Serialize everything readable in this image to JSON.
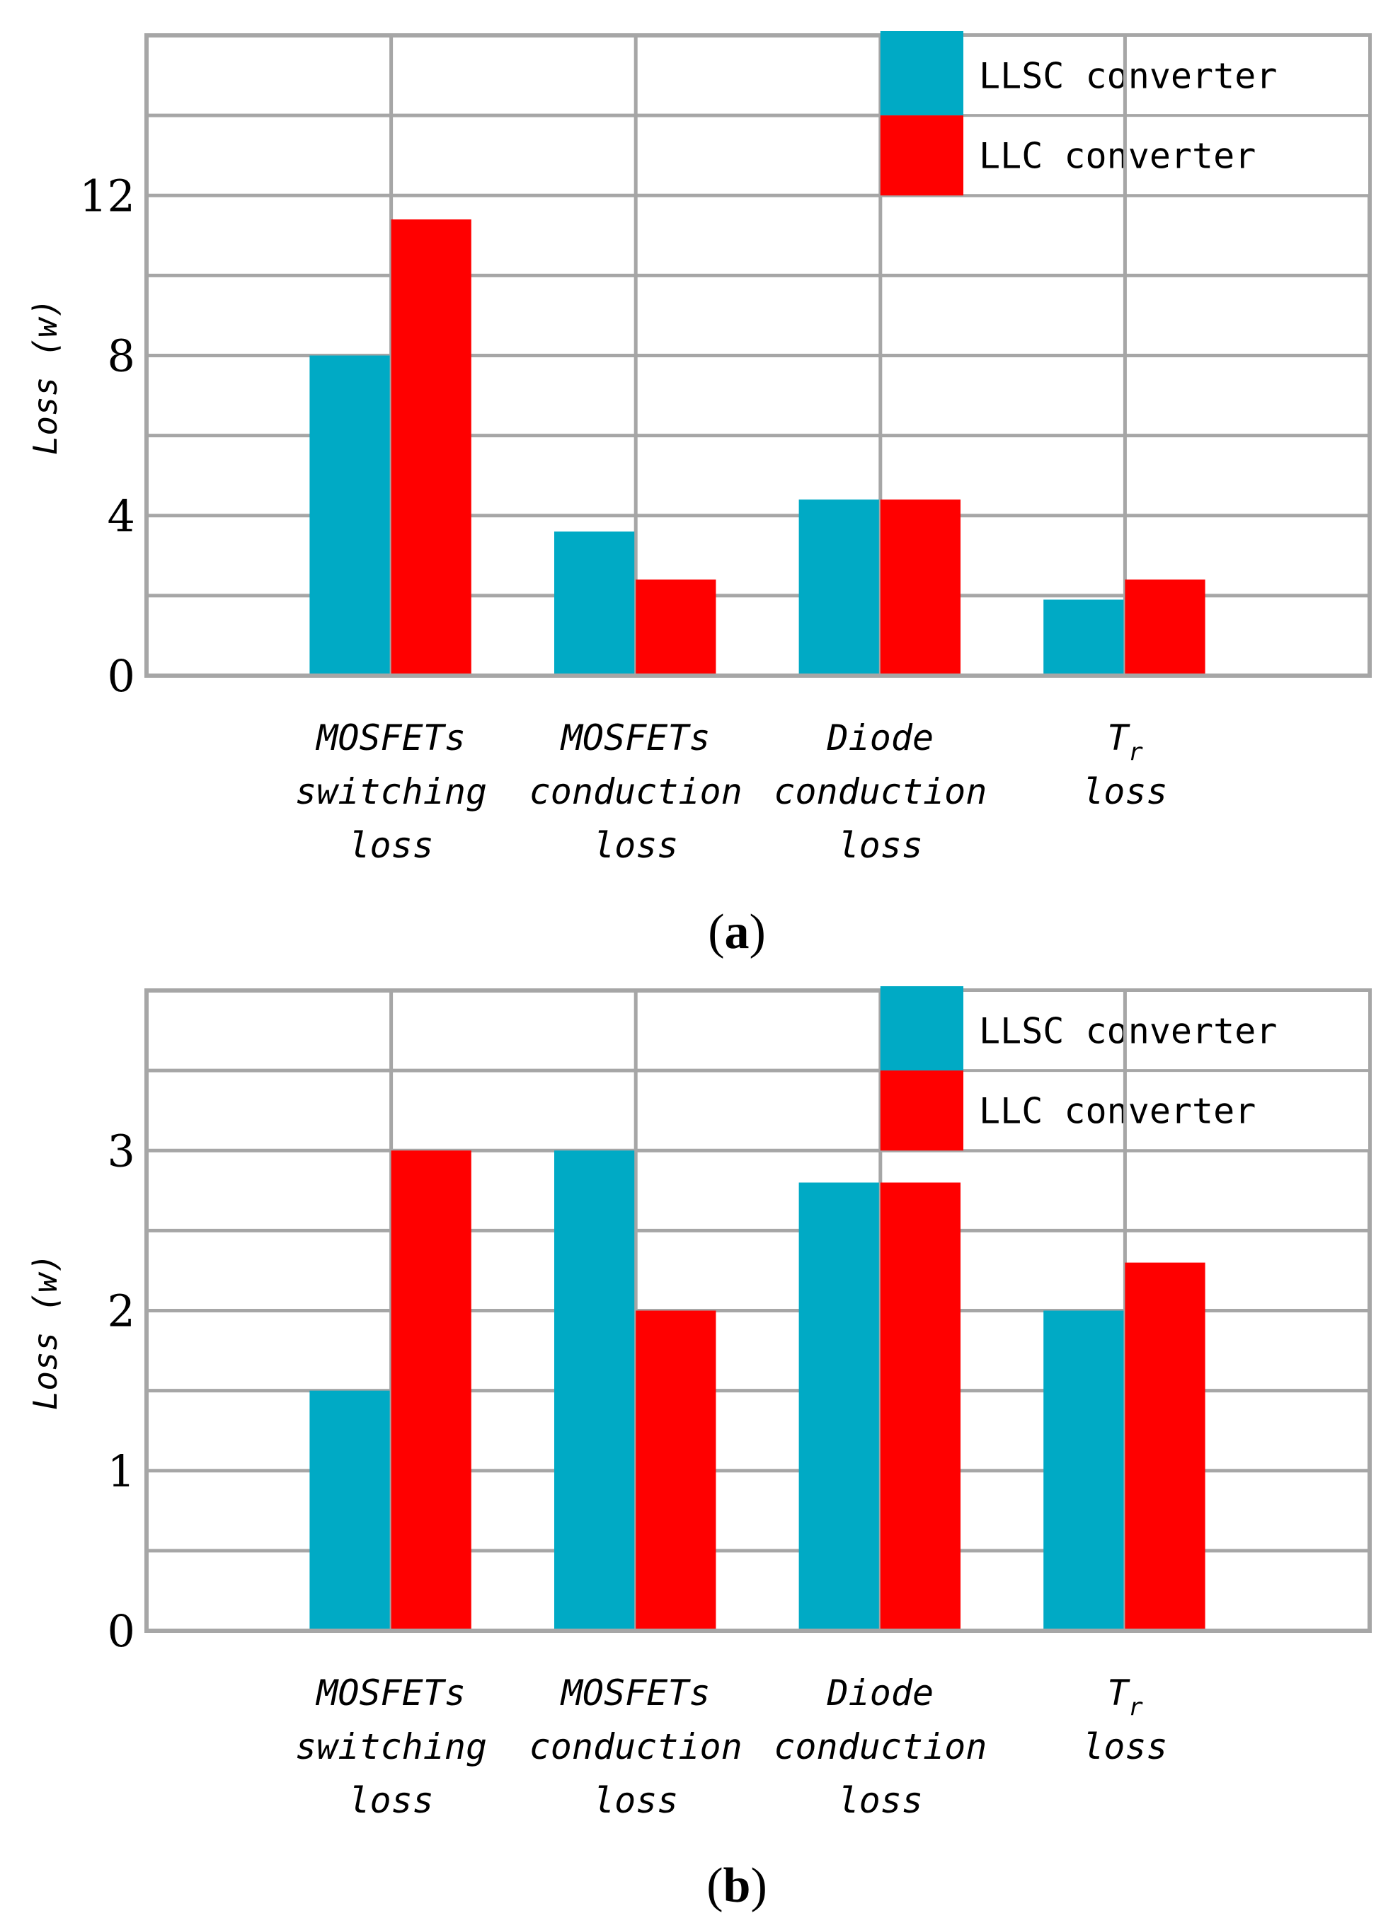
{
  "chart_data": [
    {
      "type": "bar",
      "panel_label": "a",
      "ylabel": "Loss (w)",
      "categories": [
        [
          "MOSFETs",
          "switching",
          "loss"
        ],
        [
          "MOSFETs",
          "conduction",
          "loss"
        ],
        [
          "Diode",
          "conduction",
          "loss"
        ],
        [
          "Tr",
          "loss"
        ]
      ],
      "series": [
        {
          "name": "LLSC converter",
          "color": "#00aac5",
          "values": [
            8.0,
            3.6,
            4.4,
            1.9
          ]
        },
        {
          "name": "LLC converter",
          "color": "#ff0000",
          "values": [
            11.4,
            2.4,
            4.4,
            2.4
          ]
        }
      ],
      "ylim": [
        0,
        16
      ],
      "yticks": [
        0,
        4,
        8,
        12
      ],
      "grid": true,
      "legend": "top-right"
    },
    {
      "type": "bar",
      "panel_label": "b",
      "ylabel": "Loss (w)",
      "categories": [
        [
          "MOSFETs",
          "switching",
          "loss"
        ],
        [
          "MOSFETs",
          "conduction",
          "loss"
        ],
        [
          "Diode",
          "conduction",
          "loss"
        ],
        [
          "Tr",
          "loss"
        ]
      ],
      "series": [
        {
          "name": "LLSC converter",
          "color": "#00aac5",
          "values": [
            1.5,
            3.0,
            2.8,
            2.0
          ]
        },
        {
          "name": "LLC converter",
          "color": "#ff0000",
          "values": [
            3.0,
            2.0,
            2.8,
            2.3
          ]
        }
      ],
      "ylim": [
        0,
        4
      ],
      "yticks": [
        0,
        1,
        2,
        3
      ],
      "grid": true,
      "legend": "top-right"
    }
  ]
}
